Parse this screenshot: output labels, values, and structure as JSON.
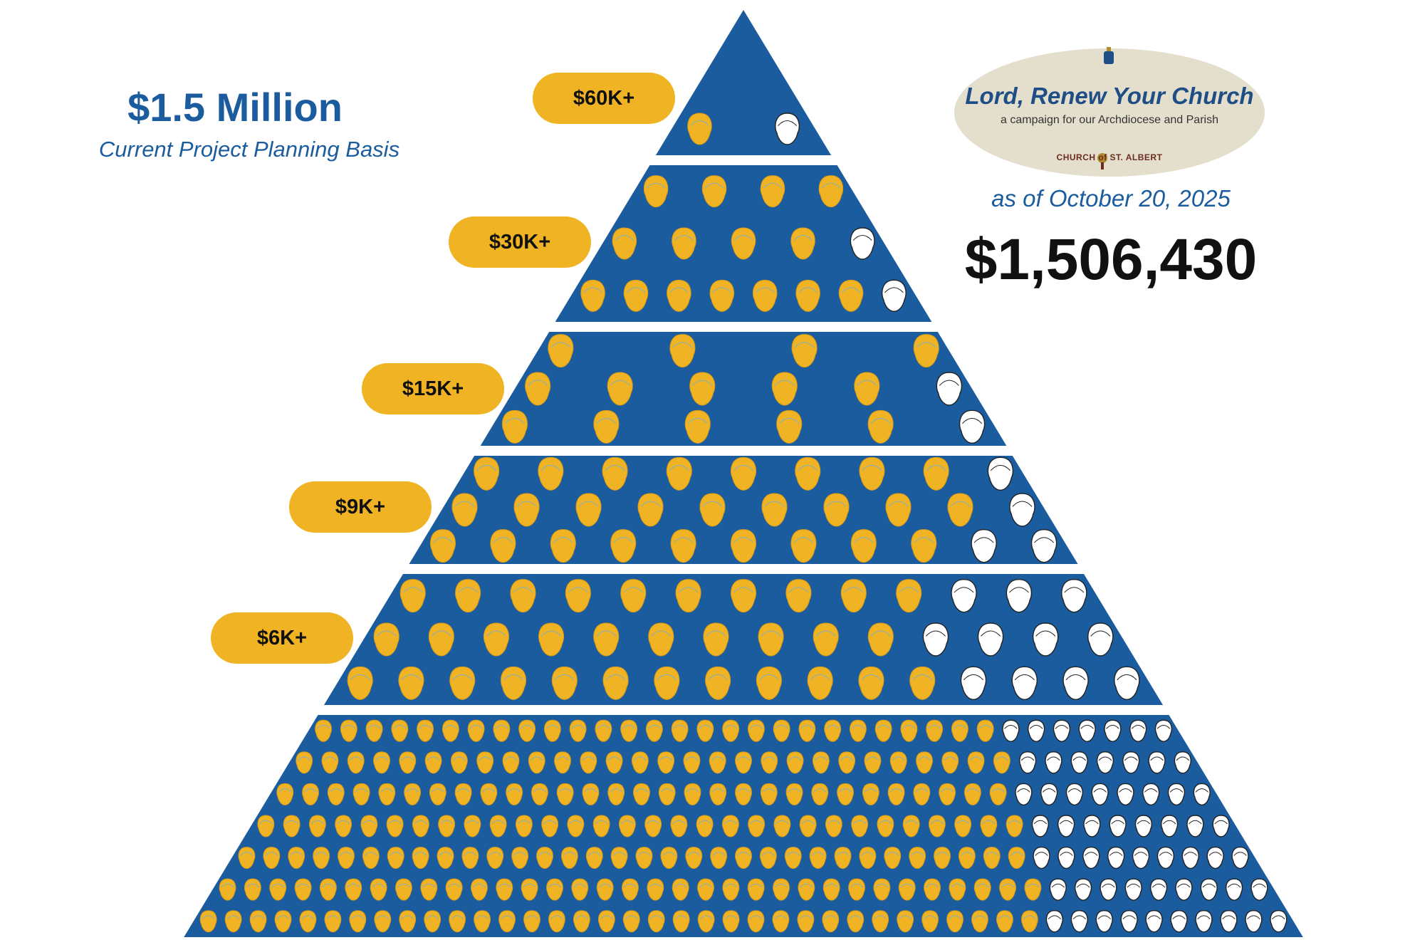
{
  "goal": {
    "amount": "$1.5 Million",
    "subtitle": "Current Project Planning Basis"
  },
  "logo": {
    "title": "Lord, Renew Your Church",
    "subtitle": "a campaign for our Archdiocese and Parish",
    "church": "CHURCH of ST. ALBERT"
  },
  "status": {
    "as_of": "as of October 20, 2025",
    "total": "$1,506,430"
  },
  "colors": {
    "pyramid_blue": "#1a5c9e",
    "pill_gold": "#f0b323",
    "head_gold": "#f0b323",
    "head_white": "#ffffff",
    "logo_oval": "#e3dfcc"
  },
  "icons": {
    "filled_head": "person-head-gold-icon",
    "open_head": "person-head-outline-icon"
  },
  "tiers": [
    {
      "label": "$60K+",
      "filled": 1,
      "open": 1
    },
    {
      "label": "$30K+",
      "filled": 15,
      "open": 2
    },
    {
      "label": "$15K+",
      "filled": 14,
      "open": 2
    },
    {
      "label": "$9K+",
      "filled": 26,
      "open": 4
    },
    {
      "label": "$6K+",
      "filled": 32,
      "open": 11
    },
    {
      "label": "",
      "filled": 213,
      "open": 58
    }
  ]
}
